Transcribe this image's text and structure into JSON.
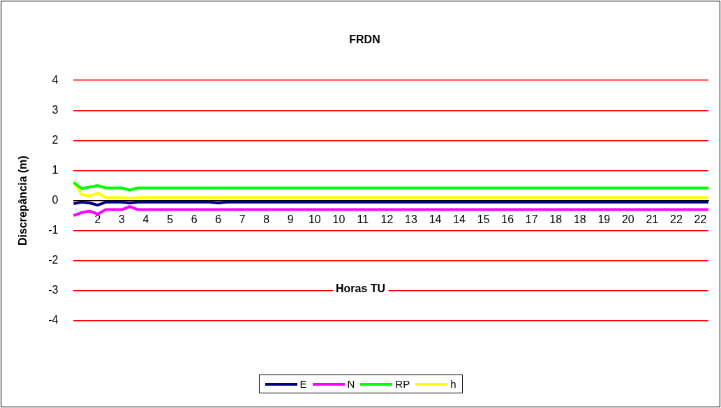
{
  "chart_data": {
    "type": "line",
    "title": "FRDN",
    "xlabel": "Horas TU",
    "ylabel": "Discrepância (m)",
    "categories": [
      null,
      null,
      null,
      "2",
      null,
      null,
      "3",
      null,
      null,
      "4",
      null,
      null,
      "5",
      null,
      null,
      "6",
      null,
      null,
      "6",
      null,
      null,
      "7",
      null,
      null,
      "8",
      null,
      null,
      "9",
      null,
      null,
      "10",
      null,
      null,
      "10",
      null,
      null,
      "11",
      null,
      null,
      "12",
      null,
      null,
      "13",
      null,
      null,
      "14",
      null,
      null,
      "14",
      null,
      null,
      "15",
      null,
      null,
      "16",
      null,
      null,
      "17",
      null,
      null,
      "18",
      null,
      null,
      "18",
      null,
      null,
      "19",
      null,
      null,
      "20",
      null,
      null,
      "21",
      null,
      null,
      "22",
      null,
      null,
      "22",
      null
    ],
    "series": [
      {
        "name": "E",
        "color": "#000080",
        "values": [
          -0.1,
          -0.05,
          -0.08,
          -0.15,
          -0.05,
          -0.05,
          -0.05,
          -0.08,
          -0.05,
          -0.05,
          -0.05,
          -0.05,
          -0.05,
          -0.05,
          -0.05,
          -0.05,
          -0.05,
          -0.05,
          -0.08,
          -0.05,
          -0.05,
          -0.05,
          -0.05,
          -0.05,
          -0.05,
          -0.05,
          -0.05,
          -0.05,
          -0.05,
          -0.05,
          -0.05,
          -0.05,
          -0.05,
          -0.05,
          -0.05,
          -0.05,
          -0.05,
          -0.05,
          -0.05,
          -0.05,
          -0.05,
          -0.05,
          -0.05,
          -0.05,
          -0.05,
          -0.05,
          -0.05,
          -0.05,
          -0.05,
          -0.05,
          -0.05,
          -0.05,
          -0.05,
          -0.05,
          -0.05,
          -0.05,
          -0.05,
          -0.05,
          -0.05,
          -0.05,
          -0.05,
          -0.05,
          -0.05,
          -0.05,
          -0.05,
          -0.05,
          -0.05,
          -0.05,
          -0.05,
          -0.05,
          -0.05,
          -0.05,
          -0.05,
          -0.05,
          -0.05,
          -0.05,
          -0.05,
          -0.05,
          -0.05,
          -0.05
        ]
      },
      {
        "name": "N",
        "color": "#ff00ff",
        "values": [
          -0.5,
          -0.4,
          -0.35,
          -0.45,
          -0.3,
          -0.3,
          -0.3,
          -0.2,
          -0.3,
          -0.3,
          -0.3,
          -0.3,
          -0.3,
          -0.3,
          -0.3,
          -0.3,
          -0.3,
          -0.3,
          -0.3,
          -0.3,
          -0.3,
          -0.3,
          -0.3,
          -0.3,
          -0.3,
          -0.3,
          -0.3,
          -0.3,
          -0.3,
          -0.3,
          -0.3,
          -0.3,
          -0.3,
          -0.3,
          -0.3,
          -0.3,
          -0.3,
          -0.3,
          -0.3,
          -0.3,
          -0.3,
          -0.3,
          -0.3,
          -0.3,
          -0.3,
          -0.3,
          -0.3,
          -0.3,
          -0.3,
          -0.3,
          -0.3,
          -0.3,
          -0.3,
          -0.3,
          -0.3,
          -0.3,
          -0.3,
          -0.3,
          -0.3,
          -0.3,
          -0.3,
          -0.3,
          -0.3,
          -0.3,
          -0.3,
          -0.3,
          -0.3,
          -0.3,
          -0.3,
          -0.3,
          -0.3,
          -0.3,
          -0.3,
          -0.3,
          -0.3,
          -0.3,
          -0.3,
          -0.3,
          -0.3,
          -0.3
        ]
      },
      {
        "name": "RP",
        "color": "#00ff00",
        "values": [
          0.6,
          0.4,
          0.45,
          0.5,
          0.42,
          0.42,
          0.42,
          0.35,
          0.42,
          0.42,
          0.42,
          0.42,
          0.42,
          0.42,
          0.42,
          0.42,
          0.42,
          0.42,
          0.42,
          0.42,
          0.42,
          0.42,
          0.42,
          0.42,
          0.42,
          0.42,
          0.42,
          0.42,
          0.42,
          0.42,
          0.42,
          0.42,
          0.42,
          0.42,
          0.42,
          0.42,
          0.42,
          0.42,
          0.42,
          0.42,
          0.42,
          0.42,
          0.42,
          0.42,
          0.42,
          0.42,
          0.42,
          0.42,
          0.42,
          0.42,
          0.42,
          0.42,
          0.42,
          0.42,
          0.42,
          0.42,
          0.42,
          0.42,
          0.42,
          0.42,
          0.42,
          0.42,
          0.42,
          0.42,
          0.42,
          0.42,
          0.42,
          0.42,
          0.42,
          0.42,
          0.42,
          0.42,
          0.42,
          0.42,
          0.42,
          0.42,
          0.42,
          0.42,
          0.42,
          0.42
        ]
      },
      {
        "name": "h",
        "color": "#ffff00",
        "values": [
          0.65,
          0.2,
          0.15,
          0.25,
          0.1,
          0.1,
          0.1,
          0.08,
          0.1,
          0.1,
          0.1,
          0.1,
          0.1,
          0.1,
          0.1,
          0.1,
          0.1,
          0.1,
          0.1,
          0.1,
          0.1,
          0.1,
          0.1,
          0.1,
          0.1,
          0.1,
          0.1,
          0.1,
          0.1,
          0.1,
          0.1,
          0.1,
          0.1,
          0.1,
          0.1,
          0.1,
          0.1,
          0.1,
          0.1,
          0.1,
          0.1,
          0.1,
          0.1,
          0.1,
          0.1,
          0.1,
          0.1,
          0.1,
          0.1,
          0.1,
          0.1,
          0.1,
          0.1,
          0.1,
          0.1,
          0.1,
          0.1,
          0.1,
          0.1,
          0.1,
          0.1,
          0.1,
          0.1,
          0.1,
          0.1,
          0.1,
          0.1,
          0.1,
          0.1,
          0.1,
          0.1,
          0.1,
          0.1,
          0.1,
          0.1,
          0.1,
          0.1,
          0.1,
          0.1,
          0.1
        ]
      }
    ],
    "ylim": [
      -4,
      4
    ],
    "yticks": [
      -4,
      -3,
      -2,
      -1,
      0,
      1,
      2,
      3,
      4
    ],
    "grid": "y",
    "legend": "bottom",
    "marker": "none",
    "line_style": "solid"
  }
}
